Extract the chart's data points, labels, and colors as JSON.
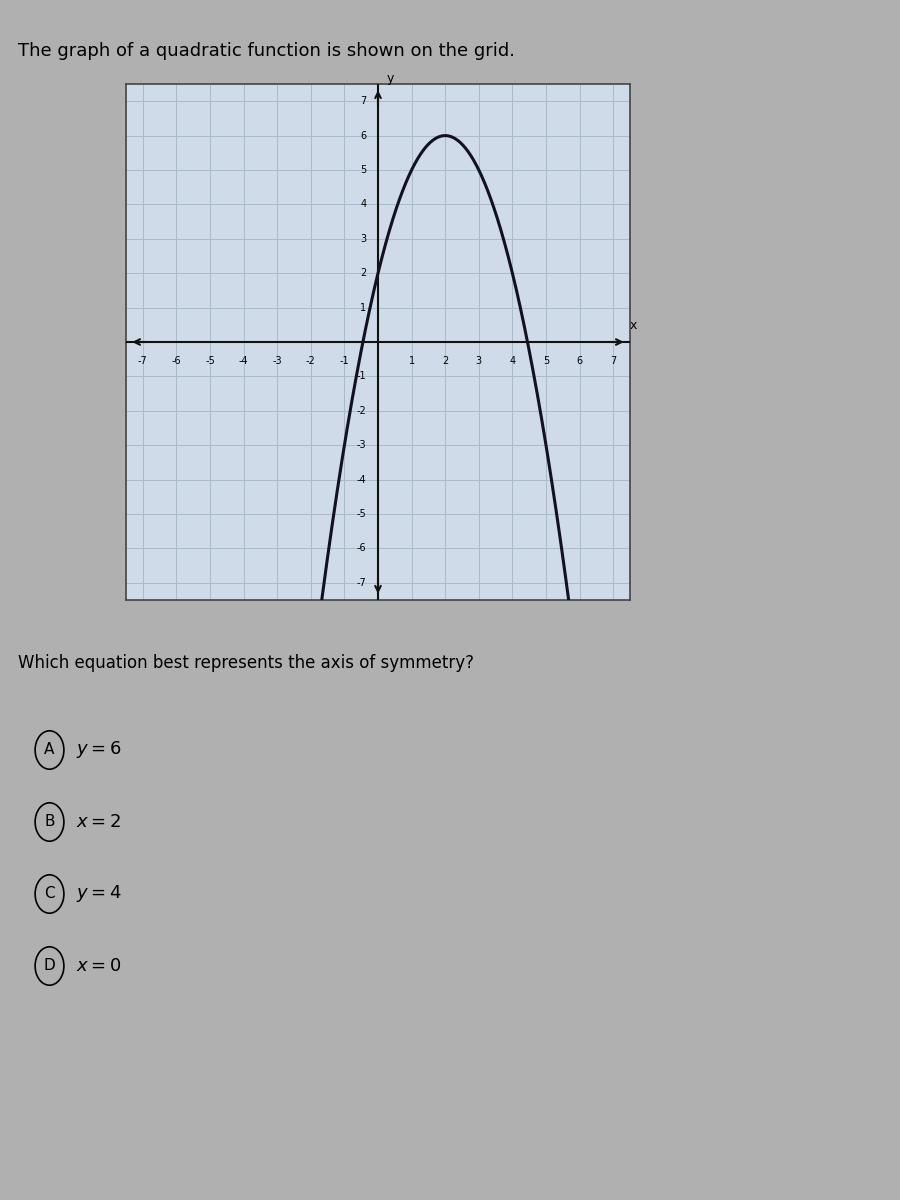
{
  "title": "The graph of a quadratic function is shown on the grid.",
  "question": "Which equation best represents the axis of symmetry?",
  "choices": [
    {
      "label": "A",
      "text": "$y = 6$"
    },
    {
      "label": "B",
      "text": "$x = 2$"
    },
    {
      "label": "C",
      "text": "$y = 4$"
    },
    {
      "label": "D",
      "text": "$x = 0$"
    }
  ],
  "xlim": [
    -7.5,
    7.5
  ],
  "ylim": [
    -7.5,
    7.5
  ],
  "vertex_x": 2,
  "vertex_y": 6,
  "parabola_a": -1.0,
  "x_ticks": [
    -7,
    -6,
    -5,
    -4,
    -3,
    -2,
    -1,
    1,
    2,
    3,
    4,
    5,
    6,
    7
  ],
  "y_ticks": [
    -7,
    -6,
    -5,
    -4,
    -3,
    -2,
    -1,
    1,
    2,
    3,
    4,
    5,
    6,
    7
  ],
  "grid_color": "#aabbcc",
  "curve_color": "#111122",
  "axis_color": "#111111",
  "bg_color": "#cfdbe8",
  "fig_bg": "#b0b0b0",
  "title_fontsize": 13,
  "question_fontsize": 12,
  "choice_fontsize": 12,
  "tick_fontsize": 7
}
